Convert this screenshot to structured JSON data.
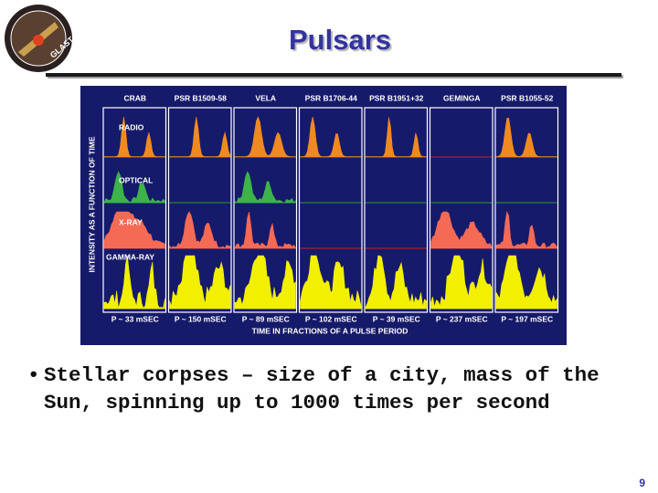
{
  "header": {
    "title": "Pulsars",
    "logo_text": "GLAST"
  },
  "figure": {
    "columns": [
      "CRAB",
      "PSR B1509-58",
      "VELA",
      "PSR B1706-44",
      "PSR B1951+32",
      "GEMINGA",
      "PSR B1055-52"
    ],
    "bands": [
      "RADIO",
      "OPTICAL",
      "X-RAY",
      "GAMMA-RAY"
    ],
    "periods": [
      "P ~ 33 mSEC",
      "P ~ 150 mSEC",
      "P ~ 89 mSEC",
      "P ~ 102 mSEC",
      "P ~ 39 mSEC",
      "P ~ 237 mSEC",
      "P ~ 197 mSEC"
    ],
    "y_label": "INTENSITY AS A FUNCTION OF TIME",
    "x_label": "TIME IN FRACTIONS OF A PULSE PERIOD"
  },
  "bullets": [
    "Stellar corpses – size of a city, mass of the Sun, spinning up to 1000 times per second"
  ],
  "footer": {
    "page": "9"
  }
}
